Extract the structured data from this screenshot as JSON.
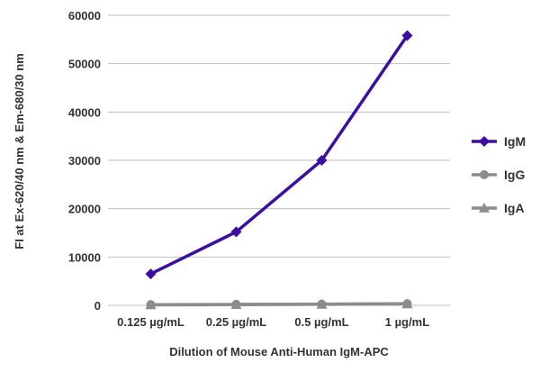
{
  "chart_data": {
    "type": "line",
    "title": "",
    "xlabel": "Dilution of Mouse Anti-Human IgM-APC",
    "ylabel": "FI at Ex-620/40 nm & Em-680/30 nm",
    "categories": [
      "0.125 µg/mL",
      "0.25 µg/mL",
      "0.5 µg/mL",
      "1 µg/mL"
    ],
    "ylim": [
      0,
      60000
    ],
    "yticks": [
      0,
      10000,
      20000,
      30000,
      40000,
      50000,
      60000
    ],
    "ytick_labels": [
      "0",
      "10000",
      "20000",
      "30000",
      "40000",
      "50000",
      "60000"
    ],
    "grid": true,
    "legend_position": "right",
    "series": [
      {
        "name": "IgM",
        "values": [
          6500,
          15200,
          30000,
          55800
        ],
        "color": "#3b0fa0",
        "marker": "diamond"
      },
      {
        "name": "IgG",
        "values": [
          150,
          200,
          250,
          350
        ],
        "color": "#8c8c8c",
        "marker": "circle"
      },
      {
        "name": "IgA",
        "values": [
          100,
          150,
          200,
          300
        ],
        "color": "#8c8c8c",
        "marker": "triangle"
      }
    ]
  }
}
